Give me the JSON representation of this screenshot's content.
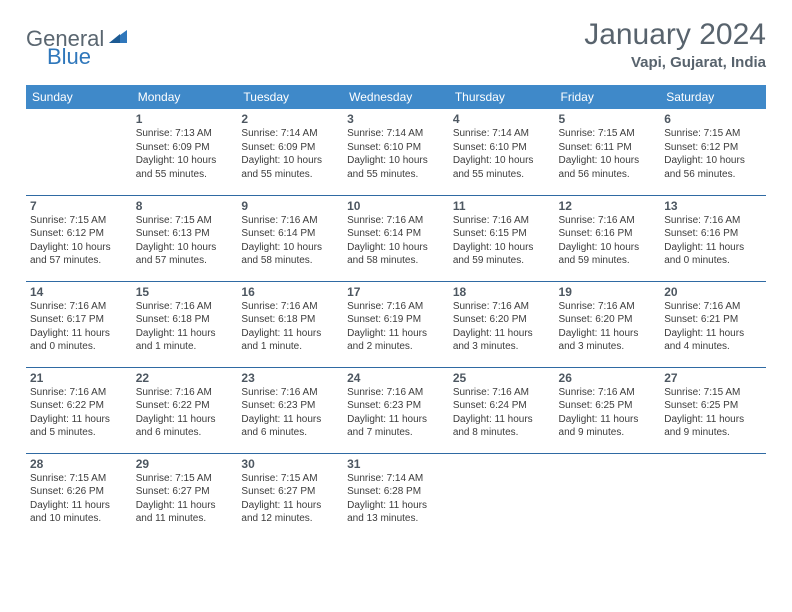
{
  "brand": {
    "general": "General",
    "blue": "Blue"
  },
  "title": "January 2024",
  "location": "Vapi, Gujarat, India",
  "colors": {
    "header_bg": "#3f89c9",
    "header_text": "#ffffff",
    "row_border": "#2f6aa3",
    "title_color": "#58636d",
    "logo_gray": "#5a6670",
    "logo_blue": "#2f77bb",
    "body_text": "#3c3c3c"
  },
  "weekdays": [
    "Sunday",
    "Monday",
    "Tuesday",
    "Wednesday",
    "Thursday",
    "Friday",
    "Saturday"
  ],
  "weeks": [
    [
      null,
      {
        "n": "1",
        "sr": "Sunrise: 7:13 AM",
        "ss": "Sunset: 6:09 PM",
        "d1": "Daylight: 10 hours",
        "d2": "and 55 minutes."
      },
      {
        "n": "2",
        "sr": "Sunrise: 7:14 AM",
        "ss": "Sunset: 6:09 PM",
        "d1": "Daylight: 10 hours",
        "d2": "and 55 minutes."
      },
      {
        "n": "3",
        "sr": "Sunrise: 7:14 AM",
        "ss": "Sunset: 6:10 PM",
        "d1": "Daylight: 10 hours",
        "d2": "and 55 minutes."
      },
      {
        "n": "4",
        "sr": "Sunrise: 7:14 AM",
        "ss": "Sunset: 6:10 PM",
        "d1": "Daylight: 10 hours",
        "d2": "and 55 minutes."
      },
      {
        "n": "5",
        "sr": "Sunrise: 7:15 AM",
        "ss": "Sunset: 6:11 PM",
        "d1": "Daylight: 10 hours",
        "d2": "and 56 minutes."
      },
      {
        "n": "6",
        "sr": "Sunrise: 7:15 AM",
        "ss": "Sunset: 6:12 PM",
        "d1": "Daylight: 10 hours",
        "d2": "and 56 minutes."
      }
    ],
    [
      {
        "n": "7",
        "sr": "Sunrise: 7:15 AM",
        "ss": "Sunset: 6:12 PM",
        "d1": "Daylight: 10 hours",
        "d2": "and 57 minutes."
      },
      {
        "n": "8",
        "sr": "Sunrise: 7:15 AM",
        "ss": "Sunset: 6:13 PM",
        "d1": "Daylight: 10 hours",
        "d2": "and 57 minutes."
      },
      {
        "n": "9",
        "sr": "Sunrise: 7:16 AM",
        "ss": "Sunset: 6:14 PM",
        "d1": "Daylight: 10 hours",
        "d2": "and 58 minutes."
      },
      {
        "n": "10",
        "sr": "Sunrise: 7:16 AM",
        "ss": "Sunset: 6:14 PM",
        "d1": "Daylight: 10 hours",
        "d2": "and 58 minutes."
      },
      {
        "n": "11",
        "sr": "Sunrise: 7:16 AM",
        "ss": "Sunset: 6:15 PM",
        "d1": "Daylight: 10 hours",
        "d2": "and 59 minutes."
      },
      {
        "n": "12",
        "sr": "Sunrise: 7:16 AM",
        "ss": "Sunset: 6:16 PM",
        "d1": "Daylight: 10 hours",
        "d2": "and 59 minutes."
      },
      {
        "n": "13",
        "sr": "Sunrise: 7:16 AM",
        "ss": "Sunset: 6:16 PM",
        "d1": "Daylight: 11 hours",
        "d2": "and 0 minutes."
      }
    ],
    [
      {
        "n": "14",
        "sr": "Sunrise: 7:16 AM",
        "ss": "Sunset: 6:17 PM",
        "d1": "Daylight: 11 hours",
        "d2": "and 0 minutes."
      },
      {
        "n": "15",
        "sr": "Sunrise: 7:16 AM",
        "ss": "Sunset: 6:18 PM",
        "d1": "Daylight: 11 hours",
        "d2": "and 1 minute."
      },
      {
        "n": "16",
        "sr": "Sunrise: 7:16 AM",
        "ss": "Sunset: 6:18 PM",
        "d1": "Daylight: 11 hours",
        "d2": "and 1 minute."
      },
      {
        "n": "17",
        "sr": "Sunrise: 7:16 AM",
        "ss": "Sunset: 6:19 PM",
        "d1": "Daylight: 11 hours",
        "d2": "and 2 minutes."
      },
      {
        "n": "18",
        "sr": "Sunrise: 7:16 AM",
        "ss": "Sunset: 6:20 PM",
        "d1": "Daylight: 11 hours",
        "d2": "and 3 minutes."
      },
      {
        "n": "19",
        "sr": "Sunrise: 7:16 AM",
        "ss": "Sunset: 6:20 PM",
        "d1": "Daylight: 11 hours",
        "d2": "and 3 minutes."
      },
      {
        "n": "20",
        "sr": "Sunrise: 7:16 AM",
        "ss": "Sunset: 6:21 PM",
        "d1": "Daylight: 11 hours",
        "d2": "and 4 minutes."
      }
    ],
    [
      {
        "n": "21",
        "sr": "Sunrise: 7:16 AM",
        "ss": "Sunset: 6:22 PM",
        "d1": "Daylight: 11 hours",
        "d2": "and 5 minutes."
      },
      {
        "n": "22",
        "sr": "Sunrise: 7:16 AM",
        "ss": "Sunset: 6:22 PM",
        "d1": "Daylight: 11 hours",
        "d2": "and 6 minutes."
      },
      {
        "n": "23",
        "sr": "Sunrise: 7:16 AM",
        "ss": "Sunset: 6:23 PM",
        "d1": "Daylight: 11 hours",
        "d2": "and 6 minutes."
      },
      {
        "n": "24",
        "sr": "Sunrise: 7:16 AM",
        "ss": "Sunset: 6:23 PM",
        "d1": "Daylight: 11 hours",
        "d2": "and 7 minutes."
      },
      {
        "n": "25",
        "sr": "Sunrise: 7:16 AM",
        "ss": "Sunset: 6:24 PM",
        "d1": "Daylight: 11 hours",
        "d2": "and 8 minutes."
      },
      {
        "n": "26",
        "sr": "Sunrise: 7:16 AM",
        "ss": "Sunset: 6:25 PM",
        "d1": "Daylight: 11 hours",
        "d2": "and 9 minutes."
      },
      {
        "n": "27",
        "sr": "Sunrise: 7:15 AM",
        "ss": "Sunset: 6:25 PM",
        "d1": "Daylight: 11 hours",
        "d2": "and 9 minutes."
      }
    ],
    [
      {
        "n": "28",
        "sr": "Sunrise: 7:15 AM",
        "ss": "Sunset: 6:26 PM",
        "d1": "Daylight: 11 hours",
        "d2": "and 10 minutes."
      },
      {
        "n": "29",
        "sr": "Sunrise: 7:15 AM",
        "ss": "Sunset: 6:27 PM",
        "d1": "Daylight: 11 hours",
        "d2": "and 11 minutes."
      },
      {
        "n": "30",
        "sr": "Sunrise: 7:15 AM",
        "ss": "Sunset: 6:27 PM",
        "d1": "Daylight: 11 hours",
        "d2": "and 12 minutes."
      },
      {
        "n": "31",
        "sr": "Sunrise: 7:14 AM",
        "ss": "Sunset: 6:28 PM",
        "d1": "Daylight: 11 hours",
        "d2": "and 13 minutes."
      },
      null,
      null,
      null
    ]
  ]
}
